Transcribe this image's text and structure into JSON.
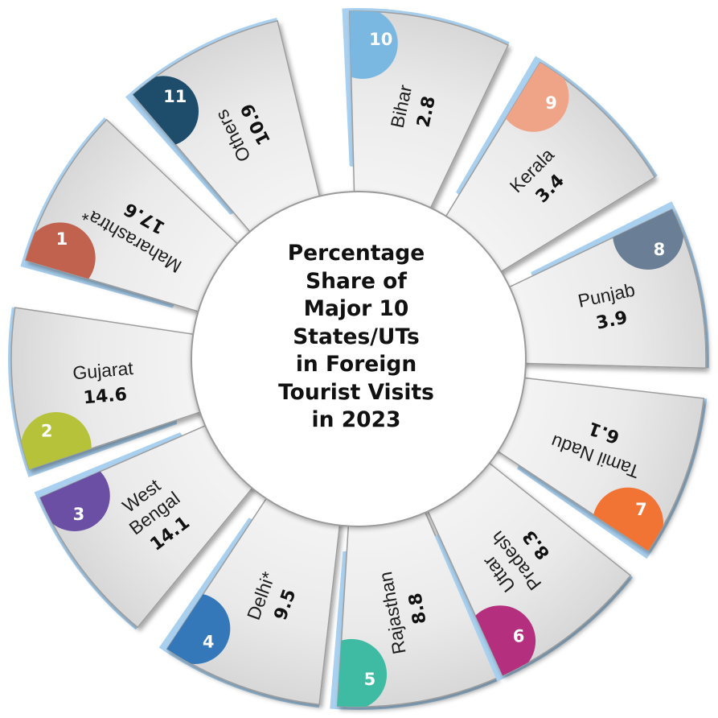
{
  "chart_data": {
    "type": "radial",
    "title_lines": [
      "Percentage",
      "Share of",
      "Major 10",
      "States/UTs",
      "in Foreign",
      "Tourist Visits",
      "in 2023"
    ],
    "unit": "percent",
    "items": [
      {
        "rank": "1",
        "label_lines": [
          "Maharashtra*"
        ],
        "value": 17.6,
        "color": "#c1624f"
      },
      {
        "rank": "2",
        "label_lines": [
          "Gujarat"
        ],
        "value": 14.6,
        "color": "#b5c23a"
      },
      {
        "rank": "3",
        "label_lines": [
          "West",
          "Bengal"
        ],
        "value": 14.1,
        "color": "#6a4fa5"
      },
      {
        "rank": "4",
        "label_lines": [
          "Delhi*"
        ],
        "value": 9.5,
        "color": "#3578b9"
      },
      {
        "rank": "5",
        "label_lines": [
          "Rajasthan"
        ],
        "value": 8.8,
        "color": "#3fbba3"
      },
      {
        "rank": "6",
        "label_lines": [
          "Uttar",
          "Pradesh"
        ],
        "value": 8.3,
        "color": "#b4307f"
      },
      {
        "rank": "7",
        "label_lines": [
          "Tamil Nadu"
        ],
        "value": 6.1,
        "color": "#f27434"
      },
      {
        "rank": "8",
        "label_lines": [
          "Punjab"
        ],
        "value": 3.9,
        "color": "#6a7f95"
      },
      {
        "rank": "9",
        "label_lines": [
          "Kerala"
        ],
        "value": 3.4,
        "color": "#efa487"
      },
      {
        "rank": "10",
        "label_lines": [
          "Bihar"
        ],
        "value": 2.8,
        "color": "#7ab8e2"
      },
      {
        "rank": "11",
        "label_lines": [
          "Others"
        ],
        "value": 10.9,
        "color": "#1e4d6b"
      }
    ]
  }
}
